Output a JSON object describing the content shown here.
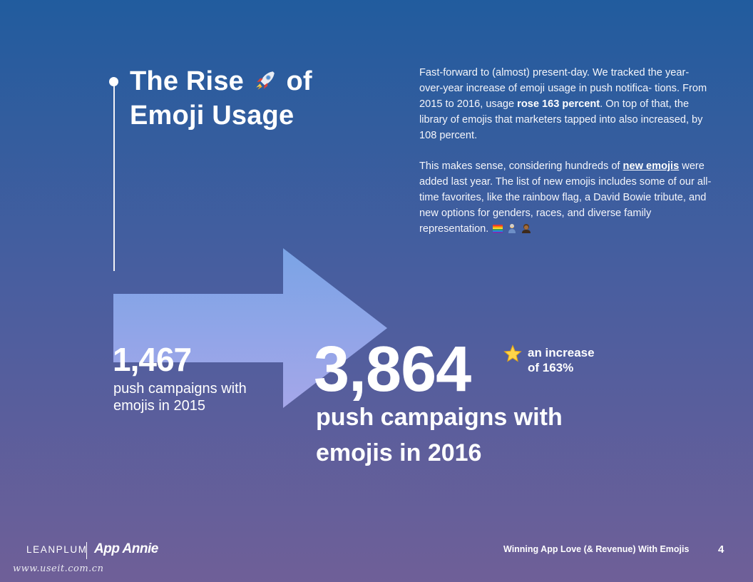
{
  "title": {
    "line1_part1": "The Rise",
    "line1_part2": "of",
    "line2": "Emoji Usage"
  },
  "body": {
    "p1_text1": "Fast-forward to (almost) present-day. We tracked the year-over-year increase of emoji usage in push notifica- tions. From 2015 to 2016, usage ",
    "p1_bold": "rose 163 percent",
    "p1_text2": ". On top of that, the library of emojis that marketers tapped into also increased, by 108 percent.",
    "p2_text1": "This makes sense, considering hundreds of ",
    "p2_link": "new emojis",
    "p2_text2": " were added last year. The list of new emojis includes some of our all-time favorites, like the rainbow flag, a David Bowie tribute, and new options for genders, races, and diverse family representation."
  },
  "stats": {
    "value_2015": "1,467",
    "caption_2015": "push campaigns with emojis in 2015",
    "value_2016": "3,864",
    "caption_2016": "push campaigns with emojis in 2016",
    "increase_line1": "an increase",
    "increase_line2": "of 163%"
  },
  "footer": {
    "logo": "LEANPLUM",
    "brand": "App Annie",
    "title": "Winning App Love (& Revenue) With Emojis",
    "page": "4"
  },
  "watermark": "www.useit.com.cn",
  "colors": {
    "bg_top": "#215c9e",
    "bg_bottom": "#6f5f98",
    "arrow_top": "#7aa4e6",
    "arrow_bottom": "#a5a6e9"
  },
  "icons": [
    "rocket-icon",
    "rainbow-flag-icon",
    "emoji-person-icon",
    "emoji-family-icon",
    "star-icon"
  ]
}
